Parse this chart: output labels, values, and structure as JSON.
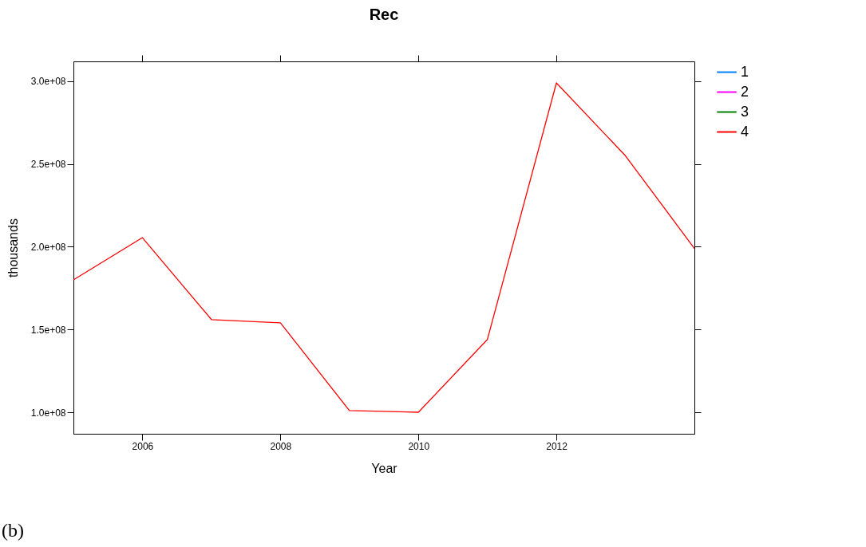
{
  "chart_data": {
    "type": "line",
    "title": "Rec",
    "xlabel": "Year",
    "ylabel": "thousands",
    "x": [
      2005,
      2006,
      2007,
      2008,
      2009,
      2010,
      2011,
      2012,
      2013,
      2014
    ],
    "xlim": [
      2005,
      2014
    ],
    "xticks": [
      2006,
      2008,
      2010,
      2012
    ],
    "ylim": [
      87000000,
      312000000
    ],
    "yticks": [
      {
        "value": 100000000,
        "label": "1.0e+08"
      },
      {
        "value": 150000000,
        "label": "1.5e+08"
      },
      {
        "value": 200000000,
        "label": "2.0e+08"
      },
      {
        "value": 250000000,
        "label": "2.5e+08"
      },
      {
        "value": 300000000,
        "label": "3.0e+08"
      }
    ],
    "series": [
      {
        "name": "1",
        "color": "#0080ff",
        "values": [
          null,
          null,
          null,
          null,
          null,
          null,
          null,
          null,
          null,
          null
        ]
      },
      {
        "name": "2",
        "color": "#ff00ff",
        "values": [
          null,
          null,
          null,
          null,
          null,
          null,
          null,
          null,
          null,
          null
        ]
      },
      {
        "name": "3",
        "color": "#008000",
        "values": [
          null,
          null,
          null,
          null,
          null,
          null,
          null,
          null,
          null,
          null
        ]
      },
      {
        "name": "4",
        "color": "#ff0000",
        "values": [
          180000000,
          205500000,
          156000000,
          154000000,
          101000000,
          100000000,
          144000000,
          299000000,
          255000000,
          199000000
        ]
      }
    ],
    "grid": false,
    "legend": "right",
    "annotations": [
      "(b)"
    ]
  }
}
